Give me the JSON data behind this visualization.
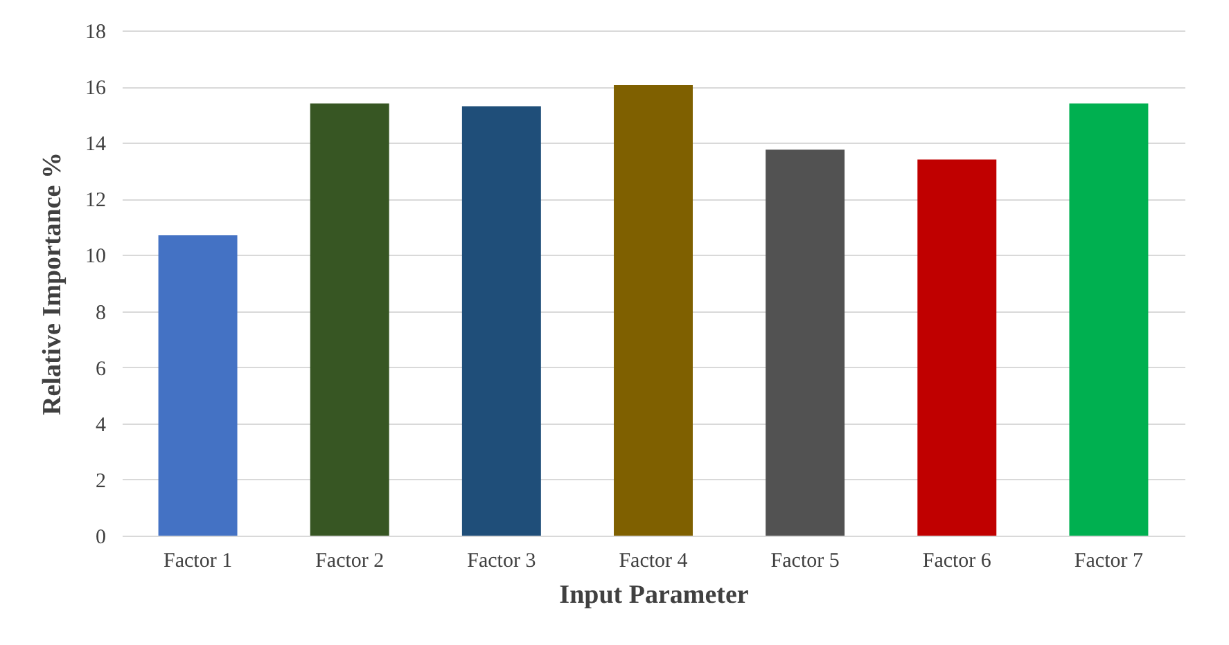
{
  "chart_data": {
    "type": "bar",
    "xlabel": "Input Parameter",
    "ylabel": "Relative Importance %",
    "categories": [
      "Factor 1",
      "Factor 2",
      "Factor 3",
      "Factor 4",
      "Factor 5",
      "Factor 6",
      "Factor 7"
    ],
    "values": [
      10.7,
      15.4,
      15.3,
      16.05,
      13.75,
      13.4,
      15.4
    ],
    "colors": [
      "#4472c4",
      "#375623",
      "#1f4e79",
      "#7f6000",
      "#525252",
      "#c00000",
      "#00b050"
    ],
    "ylim": [
      0,
      18
    ],
    "yticks": [
      0,
      2,
      4,
      6,
      8,
      10,
      12,
      14,
      16,
      18
    ],
    "grid": "y"
  }
}
